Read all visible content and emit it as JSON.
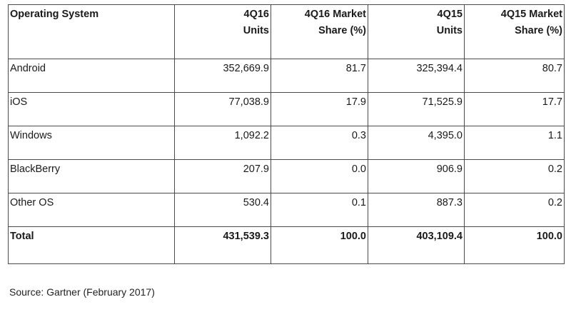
{
  "table": {
    "headers": [
      {
        "lines": [
          "Operating System"
        ]
      },
      {
        "lines": [
          "4Q16",
          "Units"
        ]
      },
      {
        "lines": [
          "4Q16 Market",
          "Share (%)"
        ]
      },
      {
        "lines": [
          "4Q15",
          "Units"
        ]
      },
      {
        "lines": [
          "4Q15 Market",
          "Share (%)"
        ]
      }
    ],
    "rows": [
      {
        "os": "Android",
        "units_4q16": "352,669.9",
        "share_4q16": "81.7",
        "units_4q15": "325,394.4",
        "share_4q15": "80.7"
      },
      {
        "os": "iOS",
        "units_4q16": "77,038.9",
        "share_4q16": "17.9",
        "units_4q15": "71,525.9",
        "share_4q15": "17.7"
      },
      {
        "os": "Windows",
        "units_4q16": "1,092.2",
        "share_4q16": "0.3",
        "units_4q15": "4,395.0",
        "share_4q15": "1.1"
      },
      {
        "os": "BlackBerry",
        "units_4q16": "207.9",
        "share_4q16": "0.0",
        "units_4q15": "906.9",
        "share_4q15": "0.2"
      },
      {
        "os": "Other OS",
        "units_4q16": "530.4",
        "share_4q16": "0.1",
        "units_4q15": "887.3",
        "share_4q15": "0.2"
      }
    ],
    "total": {
      "os": "Total",
      "units_4q16": "431,539.3",
      "share_4q16": "100.0",
      "units_4q15": "403,109.4",
      "share_4q15": "100.0"
    }
  },
  "source": "Source: Gartner (February 2017)"
}
